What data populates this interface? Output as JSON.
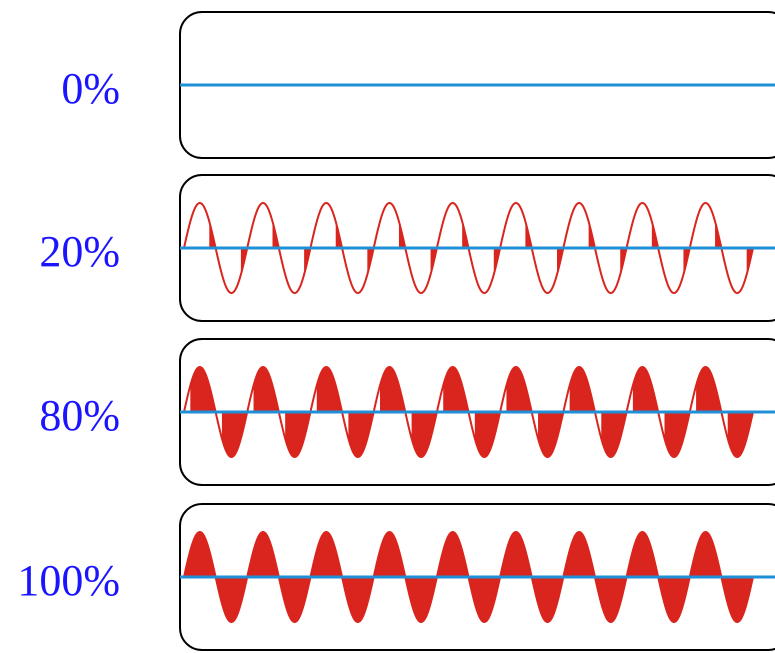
{
  "colors": {
    "label": "#1a14ff",
    "baseline": "#1f8fd6",
    "wave": "#d9251d",
    "frame": "#000000"
  },
  "panels": [
    {
      "label": "0%",
      "fraction": 0.0
    },
    {
      "label": "20%",
      "fraction": 0.2
    },
    {
      "label": "80%",
      "fraction": 0.8
    },
    {
      "label": "100%",
      "fraction": 1.0
    }
  ],
  "cycles_per_panel": 9
}
